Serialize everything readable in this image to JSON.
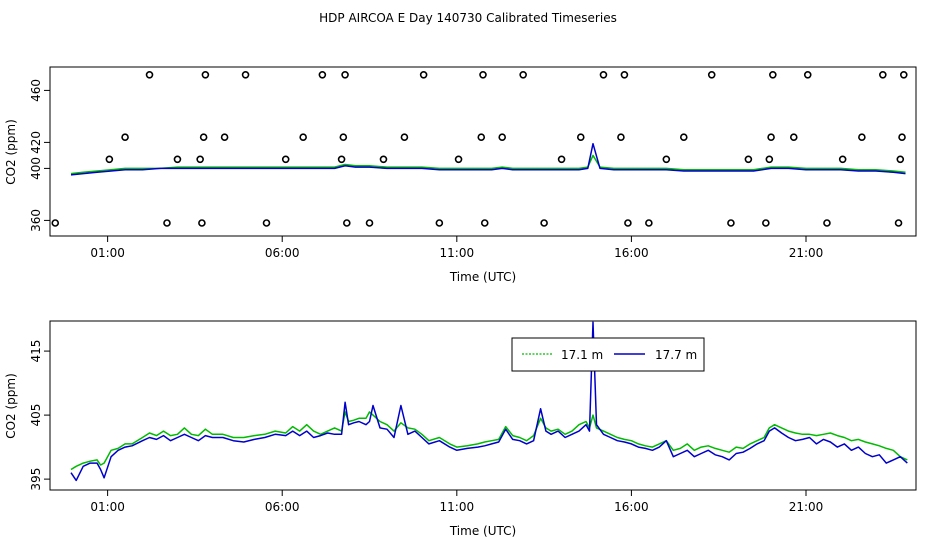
{
  "title": "HDP AIRCOA E  Day 140730  Calibrated Timeseries",
  "colors": {
    "series_a": "#00bb00",
    "series_b": "#0000cc",
    "axis": "#000000",
    "markers": "#000000"
  },
  "chart_data": [
    {
      "type": "line",
      "xlabel": "Time (UTC)",
      "ylabel": "CO2 (ppm)",
      "xlim": [
        -0.65,
        24.15
      ],
      "ylim": [
        348,
        478
      ],
      "xticks": [
        1,
        6,
        11,
        16,
        21
      ],
      "xtick_labels": [
        "01:00",
        "06:00",
        "11:00",
        "16:00",
        "21:00"
      ],
      "yticks": [
        360,
        400,
        420,
        460
      ],
      "ytick_labels": [
        "360",
        "400",
        "420",
        "460"
      ],
      "grid": false,
      "legend": "none",
      "series": [
        {
          "x": [
            -0.05,
            0.3,
            0.7,
            1.1,
            1.5,
            2.0,
            2.5,
            3.0,
            3.5,
            4.0,
            4.5,
            5.0,
            5.5,
            6.0,
            6.5,
            7.0,
            7.5,
            7.8,
            8.1,
            8.5,
            9.0,
            9.5,
            10.0,
            10.5,
            11.0,
            11.5,
            12.0,
            12.3,
            12.6,
            13.0,
            13.5,
            14.0,
            14.5,
            14.75,
            14.9,
            15.1,
            15.5,
            16.0,
            16.5,
            17.0,
            17.5,
            18.0,
            18.5,
            19.0,
            19.5,
            20.0,
            20.5,
            21.0,
            21.5,
            22.0,
            22.5,
            23.0,
            23.5,
            23.85
          ],
          "y": [
            396,
            397,
            398,
            399,
            400,
            400,
            400,
            401,
            401,
            401,
            401,
            401,
            401,
            401,
            401,
            401,
            401,
            403,
            402,
            402,
            401,
            401,
            401,
            400,
            400,
            400,
            400,
            401,
            400,
            400,
            400,
            400,
            400,
            401,
            410,
            401,
            400,
            400,
            400,
            400,
            399,
            399,
            399,
            399,
            399,
            401,
            401,
            400,
            400,
            400,
            399,
            399,
            398,
            397
          ]
        },
        {
          "x": [
            -0.05,
            0.3,
            0.7,
            1.1,
            1.5,
            2.0,
            2.5,
            3.0,
            3.5,
            4.0,
            4.5,
            5.0,
            5.5,
            6.0,
            6.5,
            7.0,
            7.5,
            7.8,
            8.1,
            8.5,
            9.0,
            9.5,
            10.0,
            10.5,
            11.0,
            11.5,
            12.0,
            12.3,
            12.6,
            13.0,
            13.5,
            14.0,
            14.5,
            14.75,
            14.9,
            15.1,
            15.5,
            16.0,
            16.5,
            17.0,
            17.5,
            18.0,
            18.5,
            19.0,
            19.5,
            20.0,
            20.5,
            21.0,
            21.5,
            22.0,
            22.5,
            23.0,
            23.5,
            23.85
          ],
          "y": [
            395,
            396,
            397,
            398,
            399,
            399,
            400,
            400,
            400,
            400,
            400,
            400,
            400,
            400,
            400,
            400,
            400,
            402,
            401,
            401,
            400,
            400,
            400,
            399,
            399,
            399,
            399,
            400,
            399,
            399,
            399,
            399,
            399,
            400,
            419,
            400,
            399,
            399,
            399,
            399,
            398,
            398,
            398,
            398,
            398,
            400,
            400,
            399,
            399,
            399,
            398,
            398,
            397,
            396
          ]
        }
      ],
      "markers": {
        "x": [
          -0.5,
          1.05,
          1.5,
          2.2,
          2.7,
          3.0,
          3.7,
          3.65,
          3.75,
          3.8,
          4.35,
          4.95,
          5.55,
          6.1,
          6.6,
          7.15,
          7.7,
          7.75,
          7.8,
          7.85,
          8.5,
          8.9,
          9.5,
          10.05,
          10.5,
          11.05,
          11.7,
          11.75,
          11.8,
          12.3,
          12.9,
          13.5,
          14.0,
          14.55,
          15.2,
          15.7,
          15.8,
          15.9,
          16.5,
          17.0,
          17.5,
          18.3,
          18.85,
          19.35,
          19.85,
          19.95,
          20.0,
          20.05,
          20.65,
          21.05,
          21.6,
          22.05,
          22.6,
          23.2,
          23.65,
          23.7,
          23.75,
          23.8
        ],
        "y": [
          358,
          407,
          424,
          472,
          358,
          407,
          358,
          407,
          424,
          472,
          424,
          472,
          358,
          407,
          424,
          472,
          407,
          424,
          472,
          358,
          358,
          407,
          424,
          472,
          358,
          407,
          424,
          472,
          358,
          424,
          472,
          358,
          407,
          424,
          472,
          424,
          472,
          358,
          358,
          407,
          424,
          472,
          358,
          407,
          358,
          407,
          424,
          472,
          424,
          472,
          358,
          407,
          424,
          472,
          358,
          407,
          424,
          472
        ]
      }
    },
    {
      "type": "line",
      "xlabel": "Time (UTC)",
      "ylabel": "CO2 (ppm)",
      "xlim": [
        -0.65,
        24.15
      ],
      "ylim": [
        393.3,
        419.7
      ],
      "xticks": [
        1,
        6,
        11,
        16,
        21
      ],
      "xtick_labels": [
        "01:00",
        "06:00",
        "11:00",
        "16:00",
        "21:00"
      ],
      "yticks": [
        395,
        405,
        415
      ],
      "ytick_labels": [
        "395",
        "405",
        "415"
      ],
      "grid": false,
      "legend": "top-center",
      "series": [
        {
          "name": "17.1 m",
          "x": [
            -0.05,
            0.1,
            0.3,
            0.5,
            0.7,
            0.8,
            0.9,
            1.1,
            1.3,
            1.5,
            1.7,
            2.0,
            2.2,
            2.4,
            2.6,
            2.8,
            3.0,
            3.2,
            3.4,
            3.6,
            3.8,
            4.0,
            4.3,
            4.6,
            4.9,
            5.2,
            5.5,
            5.8,
            6.1,
            6.3,
            6.5,
            6.7,
            6.9,
            7.1,
            7.3,
            7.5,
            7.7,
            7.8,
            7.9,
            8.05,
            8.2,
            8.4,
            8.5,
            8.6,
            8.8,
            9.0,
            9.2,
            9.4,
            9.6,
            9.8,
            10.0,
            10.2,
            10.5,
            10.8,
            11.0,
            11.3,
            11.6,
            11.8,
            12.0,
            12.2,
            12.4,
            12.6,
            12.8,
            13.0,
            13.2,
            13.4,
            13.55,
            13.7,
            13.9,
            14.1,
            14.3,
            14.5,
            14.7,
            14.8,
            14.9,
            15.0,
            15.2,
            15.4,
            15.6,
            15.8,
            16.0,
            16.2,
            16.4,
            16.6,
            16.8,
            17.0,
            17.2,
            17.4,
            17.6,
            17.8,
            18.0,
            18.2,
            18.4,
            18.6,
            18.8,
            19.0,
            19.2,
            19.4,
            19.6,
            19.8,
            19.95,
            20.1,
            20.3,
            20.5,
            20.7,
            20.9,
            21.1,
            21.3,
            21.5,
            21.7,
            21.9,
            22.1,
            22.3,
            22.5,
            22.7,
            22.9,
            23.1,
            23.3,
            23.5,
            23.7,
            23.9
          ],
          "y": [
            396.5,
            397.0,
            397.5,
            397.8,
            398.0,
            397.2,
            397.5,
            399.5,
            399.8,
            400.5,
            400.5,
            401.5,
            402.2,
            401.8,
            402.5,
            401.8,
            402.0,
            403.0,
            402.0,
            401.8,
            402.8,
            402.0,
            402.0,
            401.5,
            401.5,
            401.8,
            402.0,
            402.5,
            402.2,
            403.2,
            402.5,
            403.5,
            402.5,
            402.0,
            402.5,
            403.0,
            402.5,
            405.5,
            404.0,
            404.2,
            404.5,
            404.5,
            405.5,
            405.0,
            404.0,
            403.5,
            402.5,
            403.8,
            403.0,
            402.8,
            402.0,
            401.0,
            401.5,
            400.5,
            400.0,
            400.2,
            400.5,
            400.8,
            401.0,
            401.2,
            403.2,
            401.8,
            401.5,
            401.0,
            401.8,
            404.5,
            403.0,
            402.5,
            402.8,
            402.0,
            402.5,
            403.5,
            404.0,
            403.0,
            405.0,
            403.0,
            402.5,
            402.0,
            401.5,
            401.2,
            401.0,
            400.5,
            400.2,
            400.0,
            400.5,
            401.0,
            399.5,
            399.8,
            400.5,
            399.5,
            400.0,
            400.2,
            399.8,
            399.5,
            399.2,
            400.0,
            399.8,
            400.5,
            401.0,
            401.5,
            403.0,
            403.5,
            403.0,
            402.5,
            402.2,
            402.0,
            402.0,
            401.8,
            402.0,
            402.2,
            401.8,
            401.5,
            401.0,
            401.2,
            400.8,
            400.5,
            400.2,
            399.8,
            399.5,
            398.5,
            398.0
          ]
        },
        {
          "name": "17.7 m",
          "x": [
            -0.05,
            0.1,
            0.3,
            0.5,
            0.7,
            0.8,
            0.9,
            1.1,
            1.3,
            1.5,
            1.7,
            2.0,
            2.2,
            2.4,
            2.6,
            2.8,
            3.0,
            3.2,
            3.4,
            3.6,
            3.8,
            4.0,
            4.3,
            4.6,
            4.9,
            5.2,
            5.5,
            5.8,
            6.1,
            6.3,
            6.5,
            6.7,
            6.9,
            7.1,
            7.3,
            7.5,
            7.7,
            7.8,
            7.9,
            8.05,
            8.2,
            8.4,
            8.5,
            8.6,
            8.8,
            9.0,
            9.2,
            9.4,
            9.6,
            9.8,
            10.0,
            10.2,
            10.5,
            10.8,
            11.0,
            11.3,
            11.6,
            11.8,
            12.0,
            12.2,
            12.4,
            12.6,
            12.8,
            13.0,
            13.2,
            13.4,
            13.55,
            13.7,
            13.9,
            14.1,
            14.3,
            14.5,
            14.7,
            14.8,
            14.9,
            15.0,
            15.2,
            15.4,
            15.6,
            15.8,
            16.0,
            16.2,
            16.4,
            16.6,
            16.8,
            17.0,
            17.2,
            17.4,
            17.6,
            17.8,
            18.0,
            18.2,
            18.4,
            18.6,
            18.8,
            19.0,
            19.2,
            19.4,
            19.6,
            19.8,
            19.95,
            20.1,
            20.3,
            20.5,
            20.7,
            20.9,
            21.1,
            21.3,
            21.5,
            21.7,
            21.9,
            22.1,
            22.3,
            22.5,
            22.7,
            22.9,
            23.1,
            23.3,
            23.5,
            23.7,
            23.9
          ],
          "y": [
            396.0,
            394.8,
            397.0,
            397.5,
            397.5,
            396.5,
            395.2,
            398.5,
            399.5,
            400.0,
            400.2,
            401.0,
            401.5,
            401.2,
            401.8,
            401.0,
            401.5,
            402.0,
            401.5,
            401.0,
            401.8,
            401.5,
            401.5,
            401.0,
            400.8,
            401.2,
            401.5,
            402.0,
            401.8,
            402.5,
            401.8,
            402.5,
            401.5,
            401.8,
            402.2,
            402.0,
            402.0,
            407.0,
            403.5,
            403.8,
            404.0,
            403.5,
            404.0,
            406.5,
            403.0,
            402.8,
            401.5,
            406.5,
            402.0,
            402.5,
            401.5,
            400.5,
            401.0,
            400.0,
            399.5,
            399.8,
            400.0,
            400.2,
            400.5,
            400.8,
            402.8,
            401.2,
            401.0,
            400.5,
            401.0,
            406.0,
            402.5,
            402.0,
            402.5,
            401.5,
            402.0,
            402.5,
            403.5,
            402.5,
            419.5,
            403.5,
            402.0,
            401.5,
            401.0,
            400.8,
            400.5,
            400.0,
            399.8,
            399.5,
            400.0,
            401.0,
            398.5,
            399.0,
            399.5,
            398.5,
            399.0,
            399.5,
            398.8,
            398.5,
            398.0,
            399.0,
            399.2,
            399.8,
            400.5,
            401.0,
            402.5,
            403.0,
            402.2,
            401.5,
            401.0,
            401.2,
            401.5,
            400.5,
            401.2,
            400.8,
            400.0,
            400.5,
            399.5,
            400.0,
            399.0,
            398.5,
            398.8,
            397.5,
            398.0,
            398.5,
            397.5
          ]
        }
      ]
    }
  ]
}
